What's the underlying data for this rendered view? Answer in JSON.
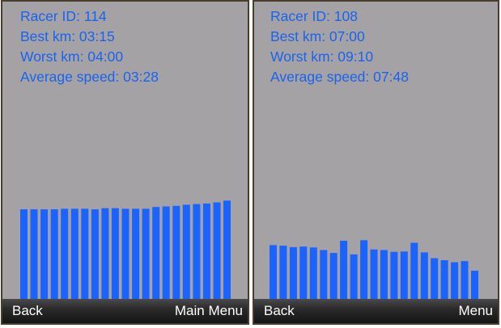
{
  "panels": [
    {
      "stats": {
        "racer_id": "Racer ID: 114",
        "best_km": "Best km: 03:15",
        "worst_km": "Worst km: 04:00",
        "average_speed": "Average speed: 03:28"
      },
      "softkeys": {
        "left": "Back",
        "right": "Main Menu"
      },
      "chart_data": {
        "type": "bar",
        "values": [
          3.08,
          3.08,
          3.08,
          3.08,
          3.1,
          3.1,
          3.1,
          3.08,
          3.12,
          3.12,
          3.1,
          3.1,
          3.1,
          3.16,
          3.18,
          3.2,
          3.24,
          3.26,
          3.28,
          3.32,
          3.38
        ],
        "ylim": [
          0,
          5.26
        ]
      }
    },
    {
      "stats": {
        "racer_id": "Racer ID: 108",
        "best_km": "Best km: 07:00",
        "worst_km": "Worst km: 09:10",
        "average_speed": "Average speed: 07:48"
      },
      "softkeys": {
        "left": "Back",
        "right": "Menu"
      },
      "chart_data": {
        "type": "bar",
        "values": [
          1.85,
          1.83,
          1.78,
          1.8,
          1.77,
          1.68,
          1.58,
          2.0,
          1.53,
          2.02,
          1.7,
          1.68,
          1.62,
          1.63,
          1.93,
          1.6,
          1.4,
          1.33,
          1.26,
          1.3,
          0.97
        ],
        "ylim": [
          0,
          5.26
        ]
      }
    }
  ],
  "colors": {
    "bar": "#1a63ff",
    "stat_text": "#1a63f0",
    "background": "#a4a2a5"
  }
}
